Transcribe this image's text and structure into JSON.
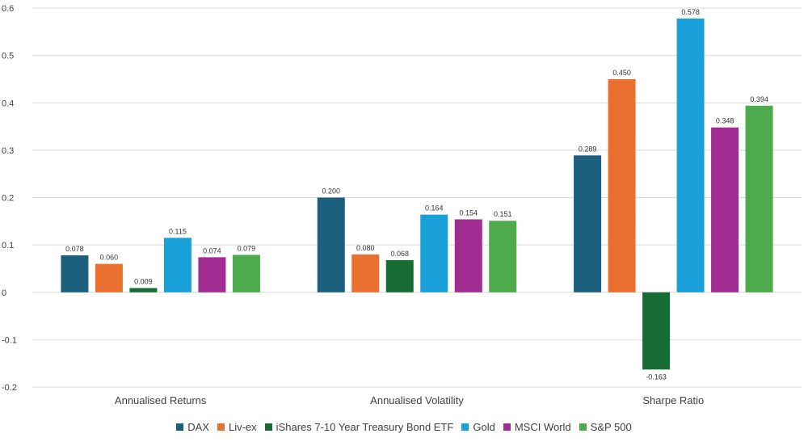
{
  "chart_data": {
    "type": "bar",
    "title": "",
    "xlabel": "",
    "ylabel": "",
    "ylim": [
      -0.2,
      0.6
    ],
    "yticks": [
      {
        "value": -0.2,
        "label": "-0.2"
      },
      {
        "value": -0.1,
        "label": "-0.1"
      },
      {
        "value": 0,
        "label": "0"
      },
      {
        "value": 0.1,
        "label": "0.1"
      },
      {
        "value": 0.2,
        "label": "0.2"
      },
      {
        "value": 0.3,
        "label": "0.3"
      },
      {
        "value": 0.4,
        "label": "0.4"
      },
      {
        "value": 0.5,
        "label": "0.5"
      },
      {
        "value": 0.6,
        "label": "0.6"
      }
    ],
    "grid": true,
    "legend_position": "bottom",
    "categories": [
      "Annualised Returns",
      "Annualised Volatility",
      "Sharpe Ratio"
    ],
    "series": [
      {
        "name": "DAX",
        "color": "#1b5e7e",
        "values": [
          0.078,
          0.2,
          0.289
        ],
        "labels": [
          "0.078",
          "0.200",
          "0.289"
        ]
      },
      {
        "name": "Liv-ex",
        "color": "#ea7030",
        "values": [
          0.06,
          0.08,
          0.45
        ],
        "labels": [
          "0.060",
          "0.080",
          "0.450"
        ]
      },
      {
        "name": "iShares 7-10 Year Treasury Bond ETF",
        "color": "#166c32",
        "values": [
          0.009,
          0.068,
          -0.163
        ],
        "labels": [
          "0.009",
          "0.068",
          "-0.163"
        ]
      },
      {
        "name": "Gold",
        "color": "#1aa0d8",
        "values": [
          0.115,
          0.164,
          0.578
        ],
        "labels": [
          "0.115",
          "0.164",
          "0.578"
        ]
      },
      {
        "name": "MSCI World",
        "color": "#a12c92",
        "values": [
          0.074,
          0.154,
          0.348
        ],
        "labels": [
          "0.074",
          "0.154",
          "0.348"
        ]
      },
      {
        "name": "S&P 500",
        "color": "#4eab4c",
        "values": [
          0.079,
          0.151,
          0.394
        ],
        "labels": [
          "0.079",
          "0.151",
          "0.394"
        ]
      }
    ]
  }
}
